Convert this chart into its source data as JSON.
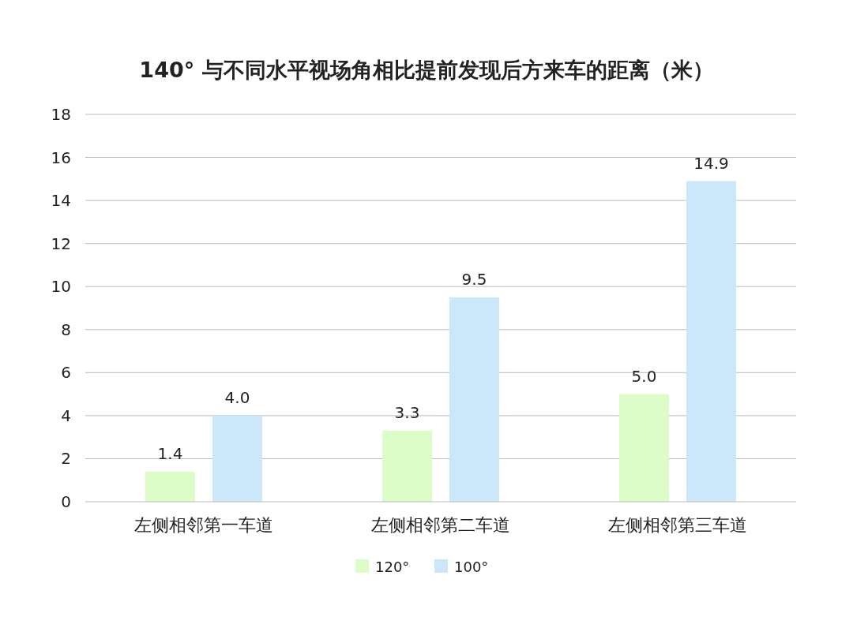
{
  "chart_data": {
    "type": "bar",
    "title": "140° 与不同水平视场角相比提前发现后方来车的距离（米）",
    "categories": [
      "左侧相邻第一车道",
      "左侧相邻第二车道",
      "左侧相邻第三车道"
    ],
    "series": [
      {
        "name": "120°",
        "color": "#dcfcc8",
        "values": [
          1.4,
          3.3,
          5.0
        ],
        "value_labels": [
          "1.4",
          "3.3",
          "5.0"
        ]
      },
      {
        "name": "100°",
        "color": "#cce6fa",
        "values": [
          4.0,
          9.5,
          14.9
        ],
        "value_labels": [
          "4.0",
          "9.5",
          "14.9"
        ]
      }
    ],
    "ylim": [
      0,
      18
    ],
    "yticks": [
      0,
      2,
      4,
      6,
      8,
      10,
      12,
      14,
      16,
      18
    ],
    "grid": "y",
    "legend": "bottom"
  }
}
